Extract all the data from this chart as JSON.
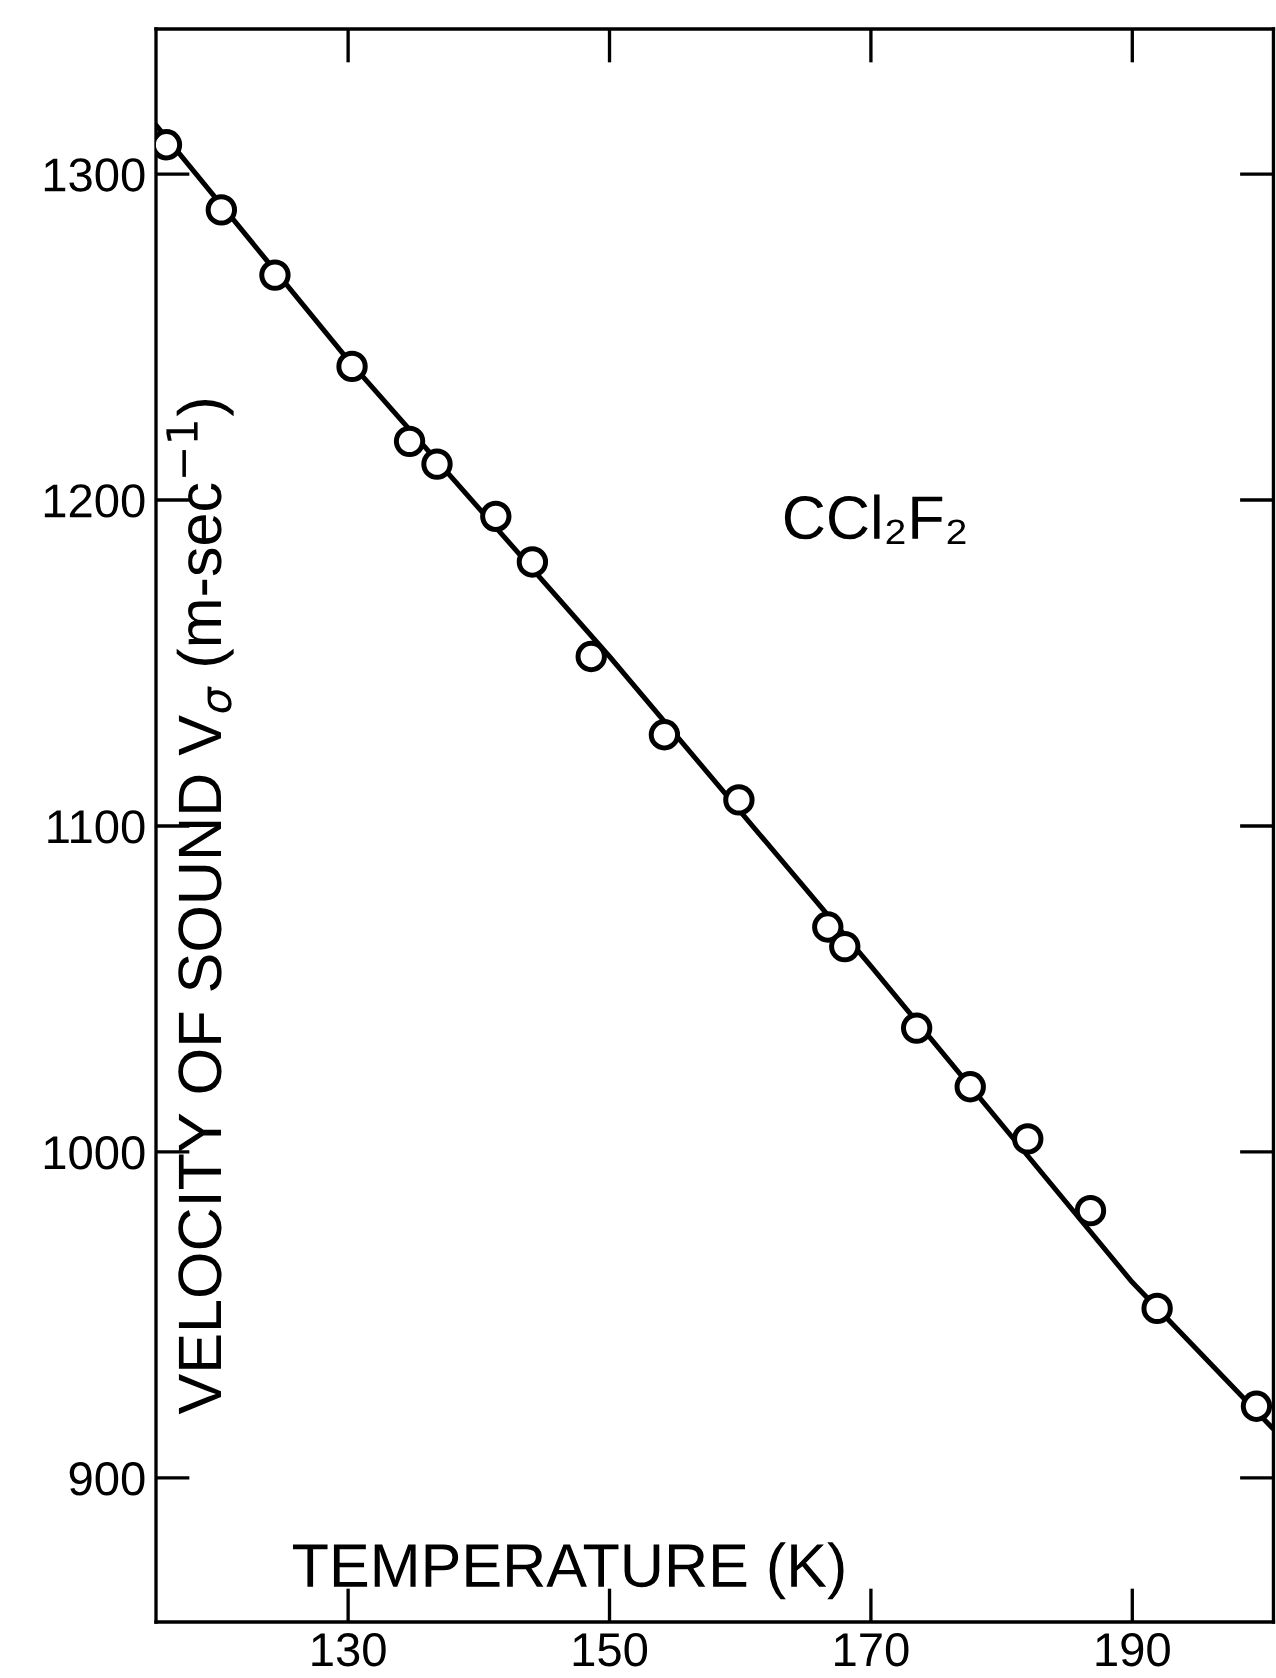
{
  "chart_data": {
    "type": "scatter",
    "xlabel": "TEMPERATURE (K)",
    "ylabel": "VELOCITY OF SOUND V$_{σ}$ (m-sec$^{−1}$)",
    "annotations": [
      "CCl₂F₂"
    ],
    "xlim": [
      115.3,
      200.8
    ],
    "ylim": [
      855.8,
      1344.5
    ],
    "xticks": [
      130,
      150,
      170,
      190
    ],
    "yticks": [
      900,
      1000,
      1100,
      1200,
      1300
    ],
    "grid": false,
    "legend": false,
    "series": [
      {
        "marker": "circle",
        "color": "#000000",
        "x": [
          116.1,
          120.3,
          124.4,
          130.3,
          134.7,
          136.8,
          141.3,
          144.1,
          148.6,
          154.2,
          159.9,
          166.7,
          168.0,
          173.5,
          177.6,
          182.0,
          186.8,
          191.9,
          199.5
        ],
        "values": [
          1309,
          1289,
          1269,
          1241,
          1218,
          1211,
          1195,
          1181,
          1152,
          1128,
          1108,
          1069,
          1063,
          1038,
          1020,
          1004,
          982,
          952,
          922
        ]
      },
      {
        "type": "line",
        "marker": "none",
        "line_style": "solid",
        "color": "#000000",
        "x": [
          115.3,
          130,
          150,
          170,
          190,
          200.8
        ],
        "values": [
          1315,
          1243,
          1152,
          1057,
          960,
          915
        ]
      }
    ]
  }
}
